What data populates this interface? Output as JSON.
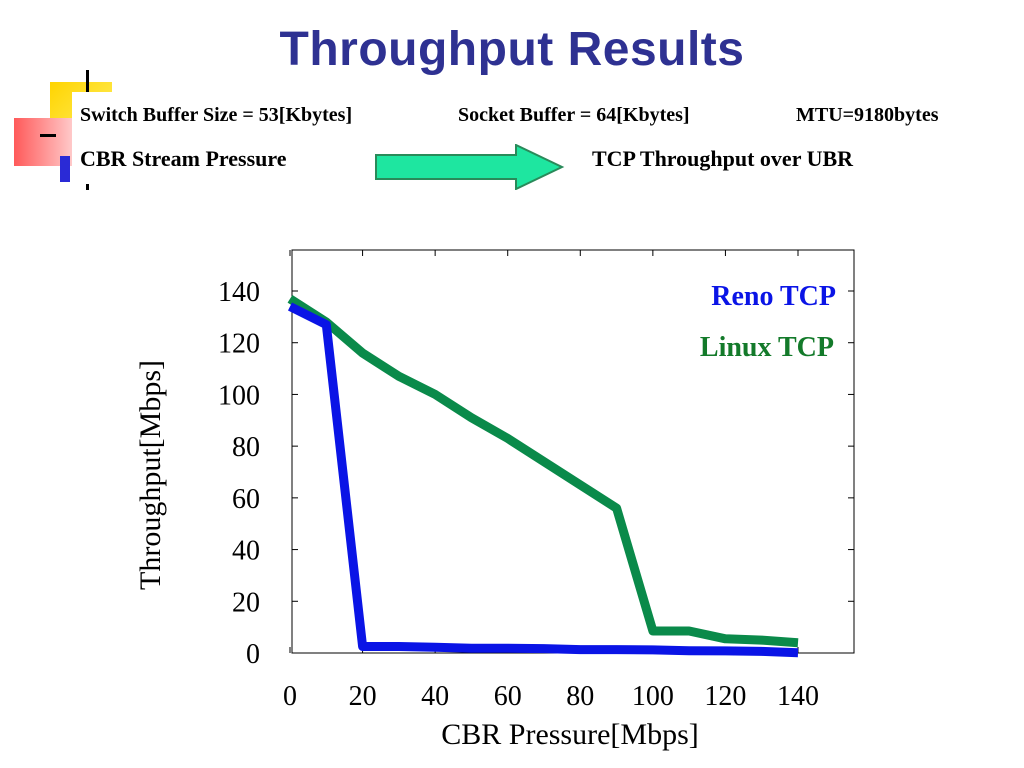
{
  "slide": {
    "title": "Throughput Results",
    "switch_buffer": "Switch Buffer Size = 53[Kbytes]",
    "socket_buffer": "Socket Buffer = 64[Kbytes]",
    "mtu": "MTU=9180bytes",
    "left_label": "CBR Stream Pressure",
    "right_label": "TCP Throughput over UBR"
  },
  "colors": {
    "title": "#2e3192",
    "reno": "#0a14e6",
    "linux": "#0a8a4a",
    "linux_label": "#137a2a",
    "arrow_fill": "#1ee6a0"
  },
  "chart_data": {
    "type": "line",
    "xlabel": "CBR Pressure[Mbps]",
    "ylabel": "Throughput[Mbps]",
    "xlim": [
      0,
      155
    ],
    "ylim": [
      -2,
      155
    ],
    "xticks": [
      0,
      20,
      40,
      60,
      80,
      100,
      120,
      140
    ],
    "yticks": [
      0,
      20,
      40,
      60,
      80,
      100,
      120,
      140
    ],
    "grid": false,
    "legend_position": "top-right",
    "series": [
      {
        "name": "Reno TCP",
        "x": [
          0,
          10,
          20,
          30,
          40,
          50,
          60,
          70,
          80,
          90,
          100,
          110,
          120,
          130,
          140
        ],
        "y": [
          134,
          127,
          2.5,
          2.5,
          2.2,
          1.8,
          1.8,
          1.7,
          1.3,
          1.3,
          1.2,
          0.9,
          0.8,
          0.6,
          0.1
        ]
      },
      {
        "name": "Linux TCP",
        "x": [
          0,
          10,
          20,
          30,
          40,
          50,
          60,
          70,
          80,
          90,
          100,
          110,
          120,
          130,
          140
        ],
        "y": [
          137,
          128,
          116,
          107,
          100,
          91,
          83,
          74,
          65,
          56,
          8.5,
          8.5,
          5.5,
          5,
          4
        ]
      }
    ]
  }
}
